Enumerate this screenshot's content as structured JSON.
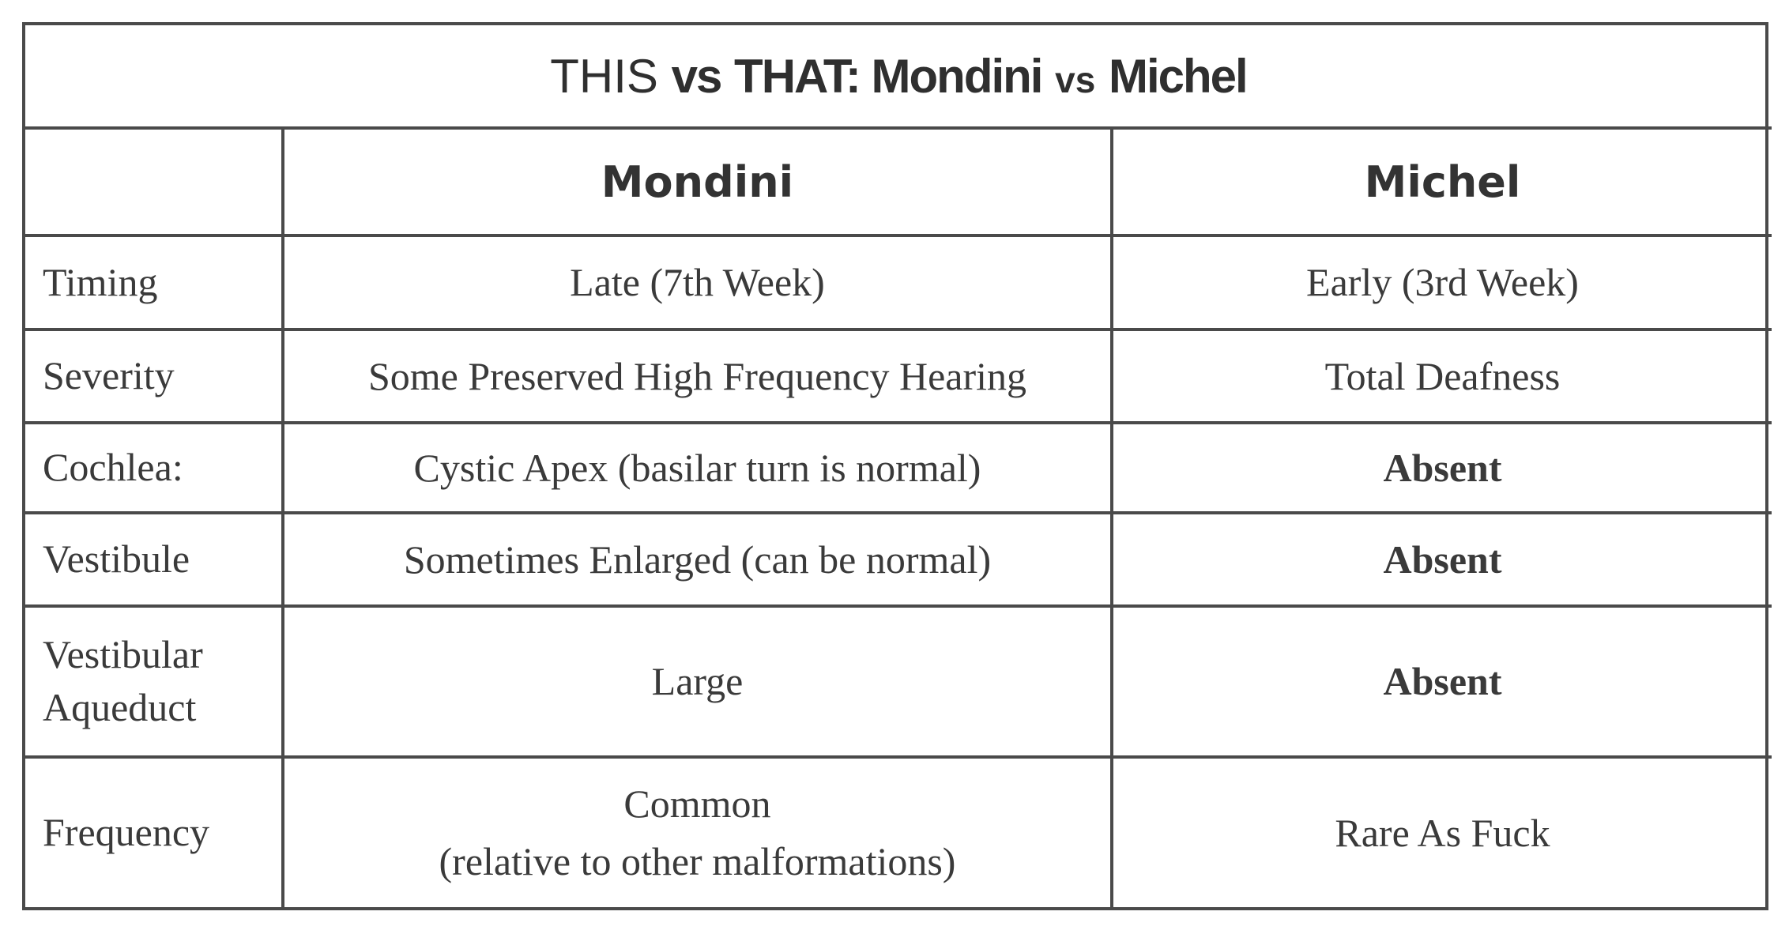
{
  "title": {
    "part1": "THIS",
    "part2": "vs",
    "part3": "THAT: Mondini",
    "part4": "vs",
    "part5": "Michel"
  },
  "columns": [
    "",
    "Mondini",
    "Michel"
  ],
  "rows": [
    {
      "label": "Timing",
      "mondini": "Late (7th Week)",
      "michel": "Early (3rd Week)"
    },
    {
      "label": "Severity",
      "mondini": "Some Preserved High Frequency Hearing",
      "michel": "Total Deafness"
    },
    {
      "label": "Cochlea:",
      "mondini": "Cystic Apex (basilar turn is normal)",
      "michel": "Absent"
    },
    {
      "label": "Vestibule",
      "mondini": "Sometimes Enlarged (can be normal)",
      "michel": "Absent"
    },
    {
      "label_line1": "Vestibular",
      "label_line2": "Aqueduct",
      "mondini": "Large",
      "michel": "Absent"
    },
    {
      "label": "Frequency",
      "mondini_line1": "Common",
      "mondini_line2": "(relative to other malformations)",
      "michel": "Rare As Fuck"
    }
  ]
}
